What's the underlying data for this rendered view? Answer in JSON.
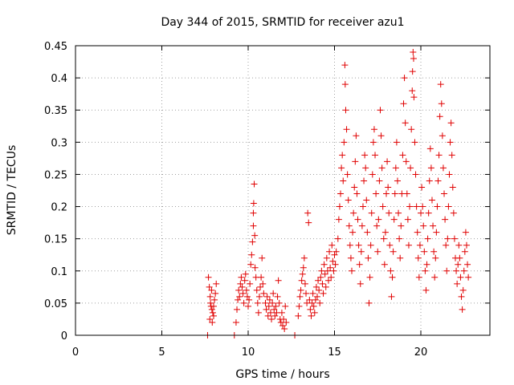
{
  "chart_data": {
    "type": "scatter",
    "title": "Day 344 of 2015, SRMTID for receiver azu1",
    "xlabel": "GPS time / hours",
    "ylabel": "SRMTID / TECUs",
    "xlim": [
      0,
      24
    ],
    "ylim": [
      0,
      0.45
    ],
    "xticks": [
      0,
      5,
      10,
      15,
      20
    ],
    "xtick_labels": [
      "0",
      "5",
      "10",
      "15",
      "20"
    ],
    "yticks": [
      0,
      0.05,
      0.1,
      0.15,
      0.2,
      0.25,
      0.3,
      0.35,
      0.4,
      0.45
    ],
    "ytick_labels": [
      "0",
      "0.05",
      "0.1",
      "0.15",
      "0.2",
      "0.25",
      "0.3",
      "0.35",
      "0.4",
      "0.45"
    ],
    "grid": true,
    "marker": "+",
    "color": "#e00000",
    "series": [
      {
        "name": "SRMTID",
        "points": [
          [
            7.65,
            0.0
          ],
          [
            9.2,
            0.0
          ],
          [
            12.7,
            0.0
          ],
          [
            7.7,
            0.09
          ],
          [
            7.75,
            0.075
          ],
          [
            7.8,
            0.06
          ],
          [
            7.82,
            0.05
          ],
          [
            7.85,
            0.045
          ],
          [
            7.9,
            0.04
          ],
          [
            7.95,
            0.035
          ],
          [
            8.0,
            0.03
          ],
          [
            8.05,
            0.055
          ],
          [
            8.1,
            0.065
          ],
          [
            8.15,
            0.08
          ],
          [
            7.78,
            0.025
          ],
          [
            7.88,
            0.07
          ],
          [
            8.0,
            0.045
          ],
          [
            7.92,
            0.02
          ],
          [
            9.3,
            0.02
          ],
          [
            9.35,
            0.04
          ],
          [
            9.4,
            0.055
          ],
          [
            9.45,
            0.07
          ],
          [
            9.5,
            0.06
          ],
          [
            9.55,
            0.08
          ],
          [
            9.6,
            0.09
          ],
          [
            9.65,
            0.075
          ],
          [
            9.7,
            0.065
          ],
          [
            9.75,
            0.05
          ],
          [
            9.8,
            0.085
          ],
          [
            9.85,
            0.095
          ],
          [
            9.9,
            0.07
          ],
          [
            9.95,
            0.06
          ],
          [
            10.0,
            0.045
          ],
          [
            10.05,
            0.055
          ],
          [
            10.1,
            0.08
          ],
          [
            10.15,
            0.11
          ],
          [
            10.2,
            0.125
          ],
          [
            10.25,
            0.145
          ],
          [
            10.3,
            0.17
          ],
          [
            10.3,
            0.19
          ],
          [
            10.32,
            0.205
          ],
          [
            10.35,
            0.235
          ],
          [
            10.38,
            0.155
          ],
          [
            10.4,
            0.105
          ],
          [
            10.45,
            0.09
          ],
          [
            10.5,
            0.07
          ],
          [
            10.55,
            0.05
          ],
          [
            10.6,
            0.035
          ],
          [
            10.65,
            0.06
          ],
          [
            10.7,
            0.075
          ],
          [
            10.75,
            0.09
          ],
          [
            10.8,
            0.12
          ],
          [
            10.85,
            0.08
          ],
          [
            10.9,
            0.065
          ],
          [
            11.0,
            0.05
          ],
          [
            11.05,
            0.04
          ],
          [
            11.1,
            0.06
          ],
          [
            11.15,
            0.03
          ],
          [
            11.2,
            0.045
          ],
          [
            11.25,
            0.055
          ],
          [
            11.3,
            0.035
          ],
          [
            11.35,
            0.025
          ],
          [
            11.4,
            0.05
          ],
          [
            11.45,
            0.065
          ],
          [
            11.5,
            0.04
          ],
          [
            11.55,
            0.03
          ],
          [
            11.6,
            0.045
          ],
          [
            11.65,
            0.035
          ],
          [
            11.7,
            0.06
          ],
          [
            11.75,
            0.085
          ],
          [
            11.8,
            0.05
          ],
          [
            11.85,
            0.025
          ],
          [
            11.9,
            0.02
          ],
          [
            11.95,
            0.035
          ],
          [
            12.0,
            0.015
          ],
          [
            12.05,
            0.025
          ],
          [
            12.1,
            0.01
          ],
          [
            12.15,
            0.045
          ],
          [
            12.2,
            0.02
          ],
          [
            12.9,
            0.03
          ],
          [
            12.95,
            0.045
          ],
          [
            13.0,
            0.06
          ],
          [
            13.05,
            0.07
          ],
          [
            13.1,
            0.085
          ],
          [
            13.15,
            0.095
          ],
          [
            13.2,
            0.105
          ],
          [
            13.25,
            0.12
          ],
          [
            13.3,
            0.08
          ],
          [
            13.35,
            0.065
          ],
          [
            13.4,
            0.05
          ],
          [
            13.45,
            0.19
          ],
          [
            13.5,
            0.175
          ],
          [
            13.55,
            0.055
          ],
          [
            13.6,
            0.04
          ],
          [
            13.65,
            0.03
          ],
          [
            13.7,
            0.05
          ],
          [
            13.75,
            0.065
          ],
          [
            13.8,
            0.045
          ],
          [
            13.85,
            0.035
          ],
          [
            13.9,
            0.055
          ],
          [
            13.95,
            0.075
          ],
          [
            14.0,
            0.06
          ],
          [
            14.05,
            0.085
          ],
          [
            14.1,
            0.07
          ],
          [
            14.15,
            0.05
          ],
          [
            14.2,
            0.09
          ],
          [
            14.25,
            0.1
          ],
          [
            14.3,
            0.08
          ],
          [
            14.35,
            0.065
          ],
          [
            14.4,
            0.11
          ],
          [
            14.45,
            0.095
          ],
          [
            14.5,
            0.075
          ],
          [
            14.55,
            0.12
          ],
          [
            14.6,
            0.1
          ],
          [
            14.65,
            0.085
          ],
          [
            14.7,
            0.13
          ],
          [
            14.75,
            0.105
          ],
          [
            14.8,
            0.09
          ],
          [
            14.85,
            0.14
          ],
          [
            14.9,
            0.115
          ],
          [
            14.95,
            0.1
          ],
          [
            15.0,
            0.125
          ],
          [
            15.05,
            0.11
          ],
          [
            15.1,
            0.13
          ],
          [
            15.2,
            0.15
          ],
          [
            15.25,
            0.18
          ],
          [
            15.3,
            0.2
          ],
          [
            15.35,
            0.22
          ],
          [
            15.4,
            0.26
          ],
          [
            15.45,
            0.28
          ],
          [
            15.5,
            0.24
          ],
          [
            15.55,
            0.3
          ],
          [
            15.6,
            0.42
          ],
          [
            15.62,
            0.39
          ],
          [
            15.65,
            0.35
          ],
          [
            15.7,
            0.32
          ],
          [
            15.75,
            0.25
          ],
          [
            15.8,
            0.21
          ],
          [
            15.85,
            0.17
          ],
          [
            15.9,
            0.14
          ],
          [
            15.95,
            0.12
          ],
          [
            16.0,
            0.1
          ],
          [
            16.05,
            0.16
          ],
          [
            16.1,
            0.19
          ],
          [
            16.15,
            0.23
          ],
          [
            16.2,
            0.27
          ],
          [
            16.25,
            0.31
          ],
          [
            16.3,
            0.22
          ],
          [
            16.35,
            0.18
          ],
          [
            16.4,
            0.14
          ],
          [
            16.45,
            0.11
          ],
          [
            16.5,
            0.08
          ],
          [
            16.55,
            0.13
          ],
          [
            16.6,
            0.17
          ],
          [
            16.65,
            0.2
          ],
          [
            16.7,
            0.24
          ],
          [
            16.75,
            0.28
          ],
          [
            16.8,
            0.26
          ],
          [
            16.85,
            0.21
          ],
          [
            16.9,
            0.16
          ],
          [
            16.95,
            0.12
          ],
          [
            17.0,
            0.05
          ],
          [
            17.05,
            0.09
          ],
          [
            17.1,
            0.14
          ],
          [
            17.15,
            0.19
          ],
          [
            17.2,
            0.25
          ],
          [
            17.25,
            0.3
          ],
          [
            17.3,
            0.32
          ],
          [
            17.35,
            0.28
          ],
          [
            17.4,
            0.22
          ],
          [
            17.45,
            0.17
          ],
          [
            17.5,
            0.13
          ],
          [
            17.55,
            0.18
          ],
          [
            17.6,
            0.24
          ],
          [
            17.65,
            0.35
          ],
          [
            17.7,
            0.31
          ],
          [
            17.75,
            0.26
          ],
          [
            17.8,
            0.2
          ],
          [
            17.85,
            0.15
          ],
          [
            17.9,
            0.11
          ],
          [
            17.95,
            0.16
          ],
          [
            18.0,
            0.22
          ],
          [
            18.05,
            0.27
          ],
          [
            18.1,
            0.23
          ],
          [
            18.15,
            0.19
          ],
          [
            18.2,
            0.14
          ],
          [
            18.25,
            0.1
          ],
          [
            18.3,
            0.06
          ],
          [
            18.35,
            0.09
          ],
          [
            18.4,
            0.13
          ],
          [
            18.45,
            0.18
          ],
          [
            18.5,
            0.22
          ],
          [
            18.55,
            0.26
          ],
          [
            18.6,
            0.3
          ],
          [
            18.65,
            0.24
          ],
          [
            18.7,
            0.19
          ],
          [
            18.75,
            0.15
          ],
          [
            18.8,
            0.12
          ],
          [
            18.85,
            0.17
          ],
          [
            18.9,
            0.22
          ],
          [
            18.95,
            0.28
          ],
          [
            19.0,
            0.36
          ],
          [
            19.05,
            0.4
          ],
          [
            19.1,
            0.33
          ],
          [
            19.15,
            0.27
          ],
          [
            19.2,
            0.22
          ],
          [
            19.25,
            0.18
          ],
          [
            19.3,
            0.14
          ],
          [
            19.35,
            0.2
          ],
          [
            19.4,
            0.26
          ],
          [
            19.45,
            0.32
          ],
          [
            19.5,
            0.38
          ],
          [
            19.52,
            0.41
          ],
          [
            19.55,
            0.44
          ],
          [
            19.58,
            0.43
          ],
          [
            19.6,
            0.37
          ],
          [
            19.65,
            0.3
          ],
          [
            19.7,
            0.25
          ],
          [
            19.75,
            0.2
          ],
          [
            19.8,
            0.16
          ],
          [
            19.85,
            0.12
          ],
          [
            19.9,
            0.09
          ],
          [
            19.95,
            0.14
          ],
          [
            20.0,
            0.19
          ],
          [
            20.05,
            0.23
          ],
          [
            20.1,
            0.2
          ],
          [
            20.15,
            0.17
          ],
          [
            20.2,
            0.13
          ],
          [
            20.25,
            0.1
          ],
          [
            20.3,
            0.07
          ],
          [
            20.35,
            0.11
          ],
          [
            20.4,
            0.15
          ],
          [
            20.45,
            0.19
          ],
          [
            20.5,
            0.24
          ],
          [
            20.55,
            0.29
          ],
          [
            20.6,
            0.26
          ],
          [
            20.65,
            0.21
          ],
          [
            20.7,
            0.17
          ],
          [
            20.75,
            0.13
          ],
          [
            20.8,
            0.09
          ],
          [
            20.85,
            0.12
          ],
          [
            20.9,
            0.16
          ],
          [
            20.95,
            0.2
          ],
          [
            21.0,
            0.24
          ],
          [
            21.05,
            0.28
          ],
          [
            21.1,
            0.34
          ],
          [
            21.15,
            0.39
          ],
          [
            21.2,
            0.36
          ],
          [
            21.25,
            0.31
          ],
          [
            21.3,
            0.26
          ],
          [
            21.35,
            0.22
          ],
          [
            21.4,
            0.18
          ],
          [
            21.45,
            0.14
          ],
          [
            21.5,
            0.1
          ],
          [
            21.55,
            0.15
          ],
          [
            21.6,
            0.2
          ],
          [
            21.65,
            0.25
          ],
          [
            21.7,
            0.3
          ],
          [
            21.75,
            0.33
          ],
          [
            21.8,
            0.28
          ],
          [
            21.85,
            0.23
          ],
          [
            21.9,
            0.19
          ],
          [
            21.95,
            0.15
          ],
          [
            22.0,
            0.12
          ],
          [
            22.05,
            0.1
          ],
          [
            22.1,
            0.08
          ],
          [
            22.15,
            0.11
          ],
          [
            22.2,
            0.14
          ],
          [
            22.25,
            0.12
          ],
          [
            22.3,
            0.09
          ],
          [
            22.35,
            0.06
          ],
          [
            22.4,
            0.04
          ],
          [
            22.45,
            0.07
          ],
          [
            22.5,
            0.1
          ],
          [
            22.55,
            0.13
          ],
          [
            22.6,
            0.16
          ],
          [
            22.65,
            0.14
          ],
          [
            22.7,
            0.11
          ],
          [
            22.75,
            0.09
          ]
        ]
      }
    ]
  }
}
